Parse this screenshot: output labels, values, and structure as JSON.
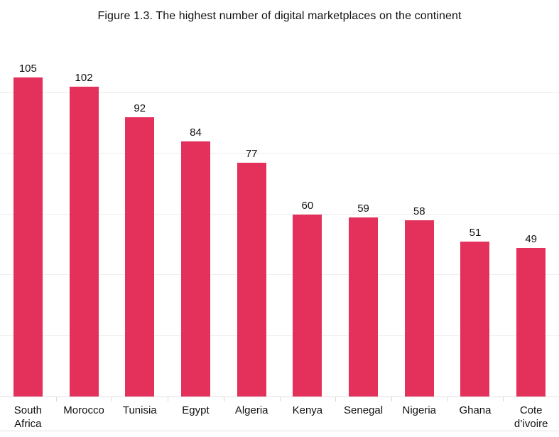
{
  "figure": {
    "title": "Figure 1.3. The highest number of digital marketplaces on the continent"
  },
  "chart_data": {
    "type": "bar",
    "title": "Figure 1.3. The highest number of digital marketplaces on the continent",
    "categories": [
      "South Africa",
      "Morocco",
      "Tunisia",
      "Egypt",
      "Algeria",
      "Kenya",
      "Senegal",
      "Nigeria",
      "Ghana",
      "Cote d’ivoire"
    ],
    "values": [
      105,
      102,
      92,
      84,
      77,
      60,
      59,
      58,
      51,
      49
    ],
    "value_labels": [
      "105",
      "102",
      "92",
      "84",
      "77",
      "60",
      "59",
      "58",
      "51",
      "49"
    ],
    "xlabel": "",
    "ylabel": "",
    "ylim": [
      0,
      110
    ],
    "gridlines": [
      20,
      40,
      60,
      80,
      100
    ],
    "grid": "on",
    "legend": "none",
    "colors": {
      "bar": "#E3315B",
      "grid": "#ededed",
      "axis": "#e2e2e2",
      "tick": "#d8d8d8",
      "text": "#111111",
      "background": "#ffffff"
    }
  }
}
